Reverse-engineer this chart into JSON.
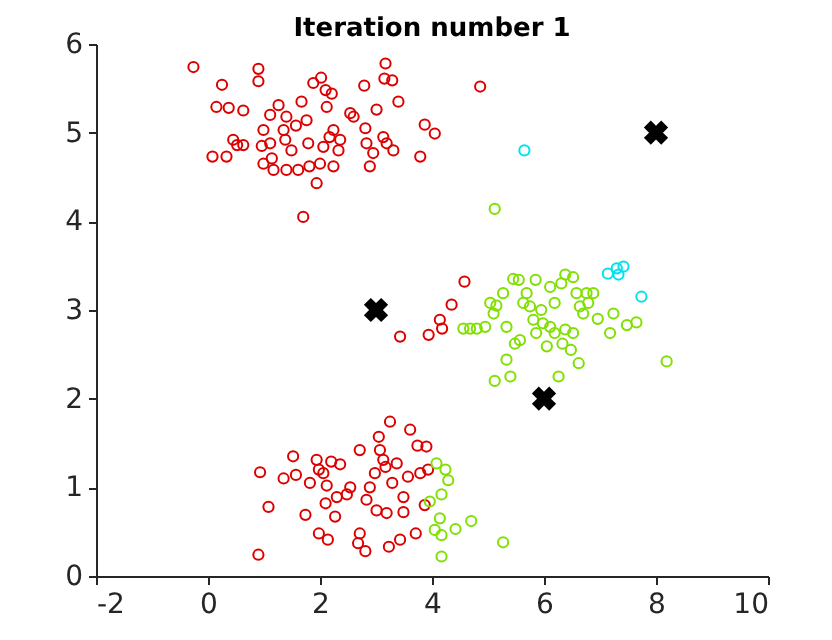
{
  "chart_data": {
    "type": "scatter",
    "title": "Iteration number 1",
    "xlim": [
      -2,
      10
    ],
    "ylim": [
      0,
      6
    ],
    "xticks": [
      -2,
      0,
      2,
      4,
      6,
      8,
      10
    ],
    "yticks": [
      0,
      1,
      2,
      3,
      4,
      5,
      6
    ],
    "grid": false,
    "legend": false,
    "marker": "circle",
    "series": [
      {
        "color": "#dd0000",
        "x": [
          -0.26,
          0.25,
          0.9,
          0.9,
          0.15,
          0.37,
          0.63,
          0.08,
          0.33,
          0.45,
          0.52,
          0.63,
          0.99,
          0.96,
          0.99,
          1.14,
          1.17,
          1.11,
          1.26,
          1.4,
          1.35,
          1.38,
          1.49,
          1.4,
          1.61,
          1.67,
          1.57,
          1.76,
          1.79,
          1.81,
          1.88,
          1.94,
          2.02,
          2.12,
          2.1,
          2.21,
          2.17,
          2.24,
          2.36,
          2.33,
          2.06,
          2.0,
          2.24,
          2.54,
          2.6,
          2.79,
          2.81,
          2.83,
          2.89,
          2.95,
          3.01,
          3.17,
          3.15,
          3.29,
          3.13,
          3.19,
          3.4,
          3.87,
          4.05,
          3.79,
          4.86,
          1.7,
          3.31,
          1.11,
          3.43,
          3.94,
          4.14,
          4.18,
          4.35,
          4.58,
          0.93,
          0.9,
          1.08,
          1.35,
          1.52,
          1.57,
          1.74,
          1.82,
          1.94,
          1.98,
          2.06,
          2.1,
          2.12,
          1.98,
          2.14,
          2.2,
          2.3,
          2.36,
          2.48,
          2.54,
          2.27,
          2.71,
          2.71,
          2.68,
          2.81,
          2.83,
          2.89,
          2.98,
          3.05,
          3.07,
          3.13,
          3.17,
          3.25,
          3.23,
          3.29,
          3.37,
          3.43,
          3.49,
          3.49,
          3.57,
          3.61,
          3.71,
          3.74,
          3.79,
          3.87,
          3.9,
          3.93,
          3.01,
          3.19
        ],
        "values": [
          5.74,
          5.54,
          5.72,
          5.58,
          5.29,
          5.28,
          5.25,
          4.73,
          4.73,
          4.92,
          4.86,
          4.86,
          5.03,
          4.85,
          4.65,
          4.71,
          4.58,
          5.2,
          5.31,
          5.18,
          5.03,
          4.92,
          4.8,
          4.58,
          4.58,
          5.35,
          5.08,
          5.14,
          4.88,
          4.62,
          5.56,
          4.43,
          5.62,
          5.29,
          5.48,
          5.44,
          4.95,
          5.03,
          4.92,
          4.8,
          4.84,
          4.65,
          4.62,
          5.22,
          5.18,
          5.53,
          5.05,
          4.88,
          4.62,
          4.77,
          5.26,
          5.78,
          5.61,
          5.59,
          4.95,
          4.88,
          5.35,
          5.09,
          4.99,
          4.73,
          5.52,
          4.05,
          4.8,
          4.88,
          2.7,
          2.72,
          2.89,
          2.79,
          3.06,
          3.32,
          1.17,
          0.24,
          0.78,
          1.1,
          1.35,
          1.14,
          0.69,
          1.05,
          1.31,
          1.2,
          1.16,
          0.82,
          1.02,
          0.48,
          0.41,
          1.29,
          0.89,
          1.26,
          0.92,
          1.0,
          0.67,
          1.42,
          0.48,
          0.37,
          0.28,
          0.86,
          1.0,
          1.16,
          1.57,
          1.42,
          1.31,
          1.23,
          1.74,
          0.33,
          1.05,
          1.27,
          0.41,
          0.89,
          0.72,
          1.12,
          1.65,
          0.48,
          1.47,
          1.16,
          0.8,
          1.46,
          1.2,
          0.74,
          0.71
        ]
      },
      {
        "color": "#80e000",
        "x": [
          5.12,
          4.56,
          4.68,
          4.8,
          4.95,
          5.1,
          5.04,
          5.15,
          5.27,
          5.33,
          5.45,
          5.55,
          5.63,
          5.69,
          5.75,
          5.85,
          5.81,
          5.57,
          5.48,
          5.33,
          5.12,
          5.4,
          5.86,
          5.98,
          6.11,
          6.05,
          6.19,
          6.26,
          6.33,
          6.38,
          6.52,
          6.48,
          6.11,
          6.31,
          6.38,
          6.52,
          6.58,
          6.64,
          6.7,
          6.76,
          6.88,
          6.79,
          6.62,
          6.96,
          7.18,
          7.24,
          7.48,
          7.65,
          8.19,
          6.19,
          5.95,
          4.08,
          4.24,
          4.29,
          4.17,
          3.96,
          4.14,
          4.05,
          4.17,
          4.42,
          4.7,
          4.17,
          5.27
        ],
        "values": [
          4.14,
          2.79,
          2.79,
          2.79,
          2.81,
          2.96,
          3.08,
          3.05,
          3.19,
          2.81,
          3.35,
          3.34,
          3.08,
          3.19,
          3.04,
          3.34,
          2.89,
          2.66,
          2.62,
          2.44,
          2.2,
          2.25,
          2.74,
          2.85,
          2.81,
          2.59,
          2.74,
          2.25,
          2.62,
          2.78,
          2.74,
          2.55,
          3.26,
          3.3,
          3.4,
          3.37,
          3.19,
          3.04,
          2.96,
          3.19,
          3.19,
          3.08,
          2.4,
          2.9,
          2.74,
          2.96,
          2.83,
          2.86,
          2.42,
          3.08,
          3.0,
          1.27,
          1.2,
          1.08,
          0.92,
          0.84,
          0.65,
          0.52,
          0.46,
          0.53,
          0.62,
          0.22,
          0.38
        ]
      },
      {
        "color": "#00e0ee",
        "x": [
          5.65,
          7.14,
          7.3,
          7.42,
          7.33,
          7.74
        ],
        "values": [
          4.8,
          3.41,
          3.47,
          3.49,
          3.4,
          3.15
        ]
      },
      {
        "color": "#000000",
        "marker": "cross",
        "x": [
          3,
          6,
          8
        ],
        "values": [
          3,
          2,
          5
        ]
      }
    ]
  }
}
